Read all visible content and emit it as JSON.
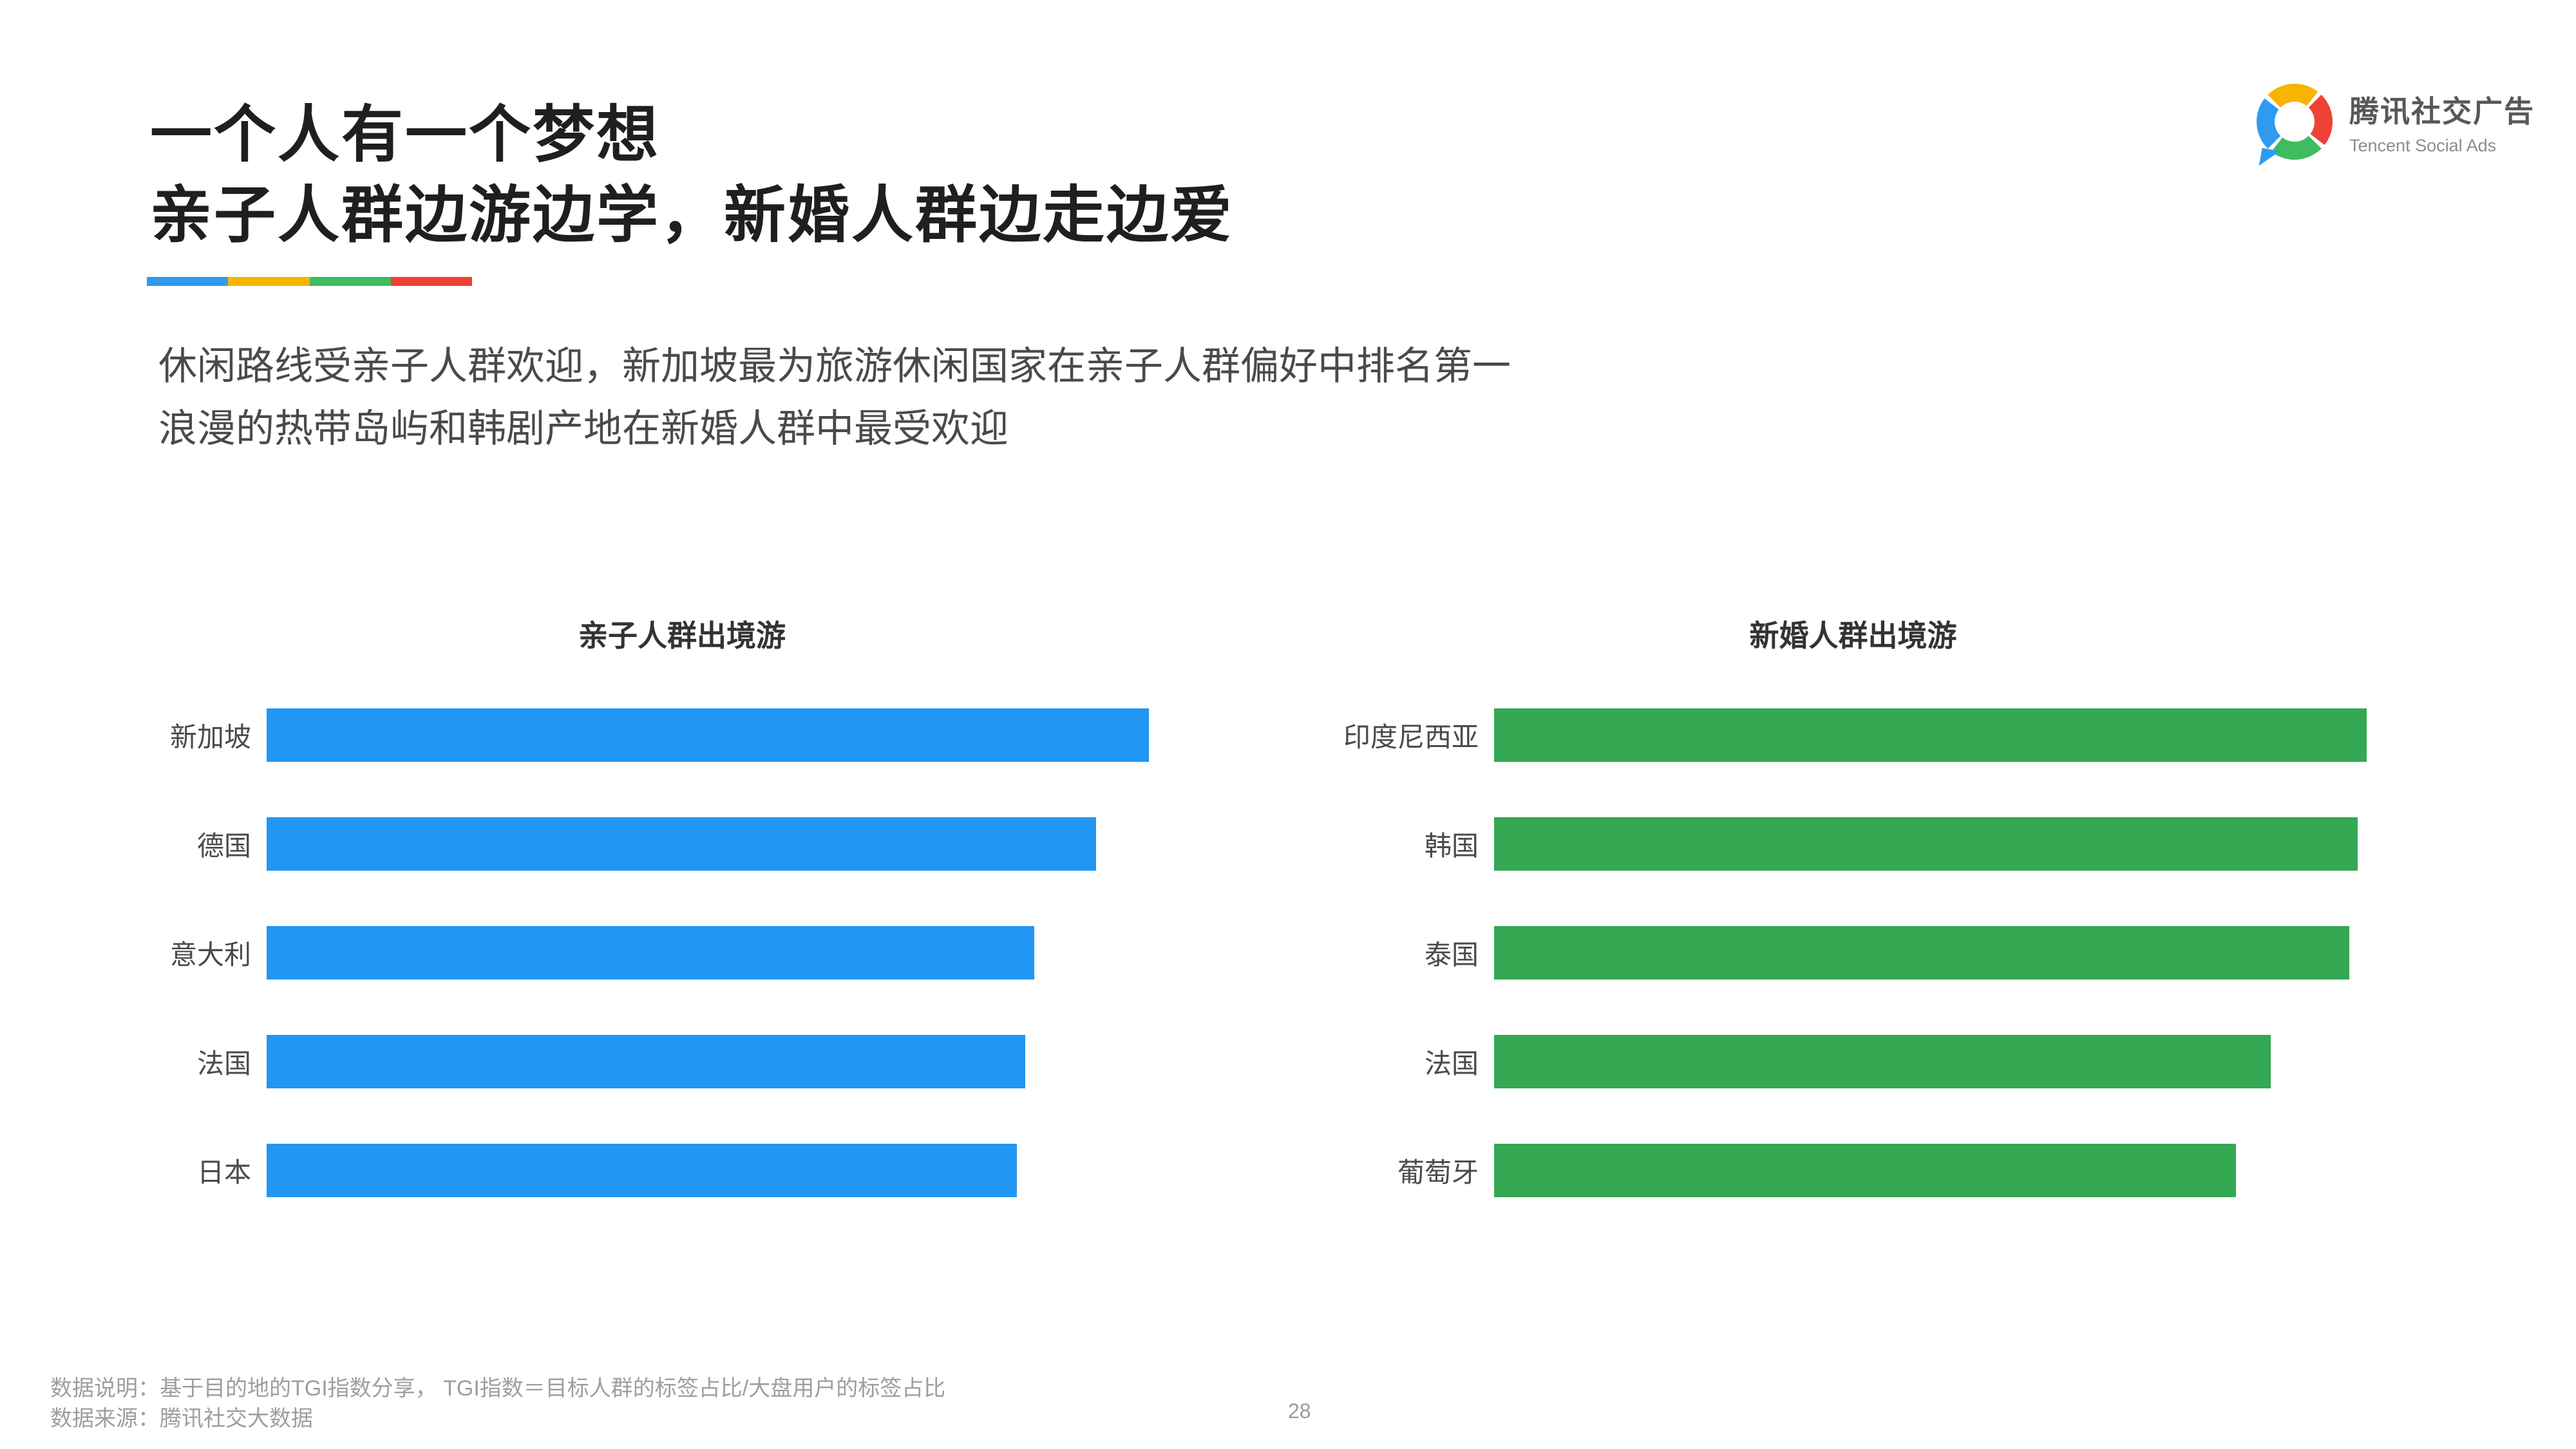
{
  "header": {
    "title_line1": "一个人有一个梦想",
    "title_line2": "亲子人群边游边学，新婚人群边走边爱"
  },
  "intro": {
    "line1": "休闲路线受亲子人群欢迎，新加坡最为旅游休闲国家在亲子人群偏好中排名第一",
    "line2": "浪漫的热带岛屿和韩剧产地在新婚人群中最受欢迎"
  },
  "logo": {
    "cn": "腾讯社交广告",
    "en": "Tencent Social Ads",
    "ring_colors": [
      "#f7b500",
      "#ef4136",
      "#3dbd5d",
      "#2e9bf0"
    ]
  },
  "accent": {
    "underline_colors": [
      "#2e9bf0",
      "#f7b500",
      "#3dbd5d",
      "#ef4136"
    ]
  },
  "chart_data": [
    {
      "type": "bar",
      "orientation": "horizontal",
      "title": "亲子人群出境游",
      "categories": [
        "新加坡",
        "德国",
        "意大利",
        "法国",
        "日本"
      ],
      "values": [
        100,
        94,
        87,
        86,
        85
      ],
      "xlim": [
        0,
        100
      ],
      "bar_color": "#2296f3",
      "grid": false,
      "legend": false,
      "note": "无数值轴标注，数值为按条形长度估算的相对指数（最长=100）"
    },
    {
      "type": "bar",
      "orientation": "horizontal",
      "title": "新婚人群出境游",
      "categories": [
        "印度尼西亚",
        "韩国",
        "泰国",
        "法国",
        "葡萄牙"
      ],
      "values": [
        100,
        99,
        98,
        89,
        85
      ],
      "xlim": [
        0,
        100
      ],
      "bar_color": "#34a853",
      "grid": false,
      "legend": false,
      "note": "无数值轴标注，数值为按条形长度估算的相对指数（最长=100）"
    }
  ],
  "footer": {
    "line1": "数据说明：基于目的地的TGI指数分享， TGI指数＝目标人群的标签占比/大盘用户的标签占比",
    "line2": "数据来源：腾讯社交大数据",
    "page_number": "28"
  }
}
